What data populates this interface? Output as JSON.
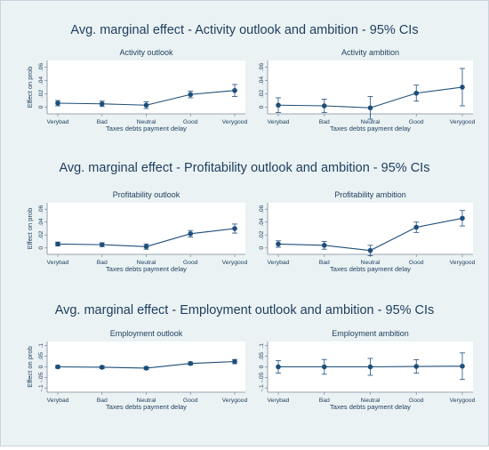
{
  "row_titles": [
    "Avg. marginal effect - Activity outlook and ambition - 95% CIs",
    "Avg. marginal effect - Profitability outlook and ambition - 95% CIs",
    "Avg. marginal effect - Employment outlook and ambition - 95% CIs"
  ],
  "chart_data": [
    {
      "type": "line",
      "title": "Activity outlook",
      "xlabel": "Taxes debts payment delay",
      "ylabel": "Effect on prob",
      "categories": [
        "Verybad",
        "Bad",
        "Neutral",
        "Good",
        "Verygood"
      ],
      "y_tick_labels": [
        "0",
        ".02",
        ".04",
        ".06"
      ],
      "ylim": [
        -0.01,
        0.07
      ],
      "values": [
        0.006,
        0.005,
        0.003,
        0.019,
        0.025
      ],
      "ci_low": [
        0.002,
        0.001,
        -0.002,
        0.014,
        0.016
      ],
      "ci_high": [
        0.01,
        0.009,
        0.008,
        0.024,
        0.034
      ]
    },
    {
      "type": "line",
      "title": "Activity ambition",
      "xlabel": "Taxes debts payment delay",
      "ylabel": "",
      "categories": [
        "Verybad",
        "Bad",
        "Neutral",
        "Good",
        "Verygood"
      ],
      "y_tick_labels": [
        "0",
        ".02",
        ".04",
        ".06"
      ],
      "ylim": [
        -0.01,
        0.07
      ],
      "values": [
        0.003,
        0.002,
        -0.001,
        0.021,
        0.03
      ],
      "ci_low": [
        -0.008,
        -0.008,
        -0.018,
        0.009,
        0.002
      ],
      "ci_high": [
        0.014,
        0.012,
        0.016,
        0.033,
        0.058
      ]
    },
    {
      "type": "line",
      "title": "Profitability outlook",
      "xlabel": "Taxes debts payment delay",
      "ylabel": "Effect on prob",
      "categories": [
        "Verybad",
        "Bad",
        "Neutral",
        "Good",
        "Verygood"
      ],
      "y_tick_labels": [
        "0",
        ".02",
        ".04",
        ".06"
      ],
      "ylim": [
        -0.01,
        0.07
      ],
      "values": [
        0.006,
        0.005,
        0.002,
        0.022,
        0.03
      ],
      "ci_low": [
        0.003,
        0.002,
        -0.002,
        0.017,
        0.023
      ],
      "ci_high": [
        0.009,
        0.008,
        0.006,
        0.027,
        0.037
      ]
    },
    {
      "type": "line",
      "title": "Profitability ambition",
      "xlabel": "Taxes debts payment delay",
      "ylabel": "",
      "categories": [
        "Verybad",
        "Bad",
        "Neutral",
        "Good",
        "Verygood"
      ],
      "y_tick_labels": [
        "0",
        ".02",
        ".04",
        ".06"
      ],
      "ylim": [
        -0.01,
        0.07
      ],
      "values": [
        0.006,
        0.004,
        -0.004,
        0.032,
        0.046
      ],
      "ci_low": [
        0.001,
        -0.002,
        -0.012,
        0.024,
        0.034
      ],
      "ci_high": [
        0.011,
        0.01,
        0.004,
        0.04,
        0.058
      ]
    },
    {
      "type": "line",
      "title": "Employment outlook",
      "xlabel": "Taxes debts payment delay",
      "ylabel": "Effect on prob",
      "categories": [
        "Verybad",
        "Bad",
        "Neutral",
        "Good",
        "Verygood"
      ],
      "y_tick_labels": [
        "-.1",
        "-.05",
        "0",
        ".05",
        ".1"
      ],
      "ylim": [
        -0.12,
        0.12
      ],
      "values": [
        0.0,
        -0.002,
        -0.006,
        0.016,
        0.025
      ],
      "ci_low": [
        -0.006,
        -0.008,
        -0.013,
        0.009,
        0.015
      ],
      "ci_high": [
        0.006,
        0.004,
        0.001,
        0.023,
        0.035
      ]
    },
    {
      "type": "line",
      "title": "Employment ambition",
      "xlabel": "Taxes debts payment delay",
      "ylabel": "",
      "categories": [
        "Verybad",
        "Bad",
        "Neutral",
        "Good",
        "Verygood"
      ],
      "y_tick_labels": [
        "-.1",
        "-.05",
        "0",
        ".05",
        ".1"
      ],
      "ylim": [
        -0.12,
        0.12
      ],
      "values": [
        0.0,
        0.0,
        0.0,
        0.002,
        0.003
      ],
      "ci_low": [
        -0.03,
        -0.035,
        -0.04,
        -0.03,
        -0.06
      ],
      "ci_high": [
        0.03,
        0.035,
        0.04,
        0.034,
        0.066
      ]
    }
  ]
}
